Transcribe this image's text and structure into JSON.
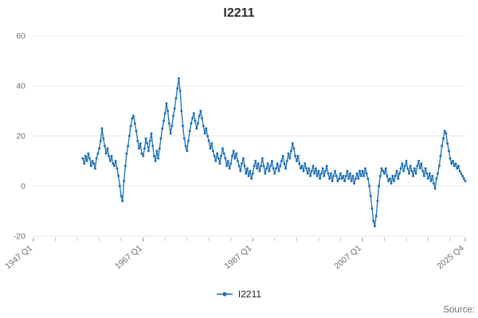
{
  "chart_data": {
    "type": "line",
    "title": "I2211",
    "series_name": "I2211",
    "source_label": "Source:",
    "line_color": "#1d70b8",
    "grid_color": "#e7e7e7",
    "frequency": "quarterly",
    "ylim": [
      -20,
      60
    ],
    "yticks": [
      60,
      40,
      20,
      0,
      -20
    ],
    "x_axis": {
      "min_year": 1947,
      "min_quarter": 1,
      "max_year": 2025,
      "max_quarter": 4,
      "tick_labels": [
        "1947 Q1",
        "1967 Q1",
        "1987 Q1",
        "2007 Q1",
        "2025 Q4"
      ],
      "tick_indices": [
        0,
        80,
        160,
        240,
        315
      ],
      "minor_tick_step_quarters": 16
    },
    "x_start": {
      "year": 1956,
      "quarter": 1
    },
    "values": [
      11,
      9,
      12,
      10,
      13,
      11,
      8,
      10,
      9,
      7,
      11,
      13,
      15,
      18,
      23,
      19,
      16,
      13,
      15,
      12,
      10,
      12,
      9,
      8,
      10,
      7,
      4,
      0,
      -4,
      -6,
      2,
      8,
      13,
      16,
      20,
      24,
      27,
      28,
      25,
      22,
      18,
      15,
      17,
      13,
      12,
      15,
      19,
      17,
      14,
      18,
      21,
      16,
      12,
      10,
      14,
      11,
      15,
      19,
      23,
      26,
      29,
      33,
      30,
      25,
      21,
      24,
      28,
      31,
      35,
      39,
      43,
      38,
      30,
      24,
      19,
      16,
      14,
      18,
      22,
      25,
      27,
      29,
      26,
      23,
      25,
      28,
      30,
      27,
      24,
      21,
      23,
      20,
      18,
      15,
      17,
      14,
      12,
      10,
      13,
      11,
      9,
      12,
      15,
      13,
      11,
      8,
      10,
      7,
      9,
      12,
      14,
      11,
      13,
      10,
      8,
      6,
      9,
      11,
      8,
      5,
      7,
      4,
      6,
      3,
      5,
      8,
      10,
      7,
      9,
      6,
      8,
      11,
      8,
      5,
      7,
      9,
      6,
      8,
      10,
      7,
      5,
      7,
      9,
      6,
      8,
      10,
      12,
      9,
      7,
      10,
      13,
      11,
      14,
      17,
      15,
      12,
      10,
      12,
      9,
      7,
      8,
      6,
      9,
      7,
      5,
      7,
      4,
      6,
      8,
      5,
      7,
      4,
      6,
      3,
      5,
      7,
      4,
      6,
      8,
      5,
      3,
      5,
      2,
      4,
      6,
      4,
      2,
      3,
      5,
      3,
      4,
      2,
      4,
      6,
      3,
      5,
      2,
      4,
      1,
      3,
      5,
      3,
      6,
      4,
      6,
      4,
      7,
      5,
      3,
      0,
      -4,
      -9,
      -14,
      -16,
      -12,
      -6,
      0,
      4,
      7,
      6,
      5,
      7,
      4,
      2,
      3,
      1,
      4,
      2,
      4,
      6,
      3,
      5,
      7,
      9,
      6,
      8,
      10,
      7,
      5,
      8,
      6,
      4,
      7,
      5,
      8,
      10,
      7,
      9,
      6,
      4,
      7,
      5,
      3,
      5,
      2,
      4,
      1,
      -1,
      3,
      5,
      8,
      12,
      16,
      19,
      22,
      21,
      17,
      14,
      11,
      9,
      10,
      8,
      9,
      7,
      8,
      6,
      5,
      4,
      3,
      2
    ]
  }
}
